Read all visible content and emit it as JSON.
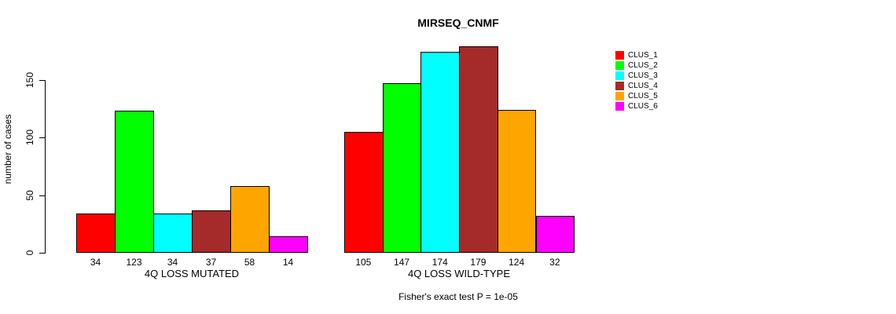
{
  "chart_data": {
    "type": "bar",
    "title": "MIRSEQ_CNMF",
    "ylabel": "number of cases",
    "xlabel": "",
    "yticks": [
      0,
      50,
      100,
      150
    ],
    "ylim": [
      0,
      185
    ],
    "grid": false,
    "legend_position": "right-outside",
    "bar_value_labels_shown": true,
    "categories": [
      "4Q LOSS MUTATED",
      "4Q LOSS WILD-TYPE"
    ],
    "series": [
      {
        "name": "CLUS_1",
        "color": "#FF0000",
        "values": [
          34,
          105
        ]
      },
      {
        "name": "CLUS_2",
        "color": "#00FF00",
        "values": [
          123,
          147
        ]
      },
      {
        "name": "CLUS_3",
        "color": "#00FFFF",
        "values": [
          34,
          174
        ]
      },
      {
        "name": "CLUS_4",
        "color": "#A52A2A",
        "values": [
          37,
          179
        ]
      },
      {
        "name": "CLUS_5",
        "color": "#FFA500",
        "values": [
          58,
          124
        ]
      },
      {
        "name": "CLUS_6",
        "color": "#FF00FF",
        "values": [
          14,
          32
        ]
      }
    ],
    "annotation": "Fisher's exact test P = 1e-05"
  }
}
